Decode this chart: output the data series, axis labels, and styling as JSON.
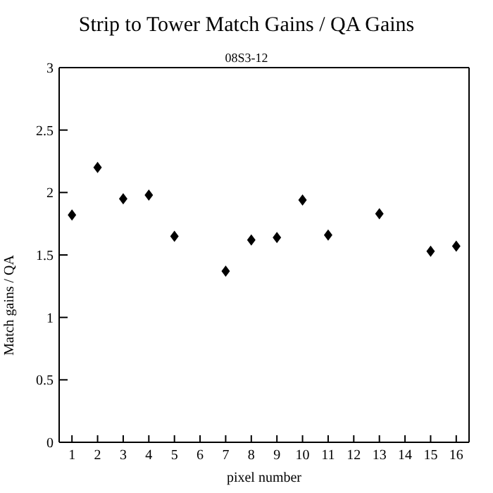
{
  "chart_data": {
    "type": "scatter",
    "title": "Strip to Tower Match Gains / QA Gains",
    "subtitle": "08S3-12",
    "xlabel": "pixel number",
    "ylabel": "Match gains / QA",
    "x": [
      1,
      2,
      3,
      4,
      5,
      7,
      8,
      9,
      10,
      11,
      13,
      15,
      16
    ],
    "values": [
      1.82,
      2.2,
      1.95,
      1.98,
      1.65,
      1.37,
      1.62,
      1.64,
      1.94,
      1.66,
      1.83,
      1.53,
      1.57
    ],
    "errors": [
      null,
      null,
      null,
      0.03,
      null,
      0.03,
      null,
      null,
      0.03,
      null,
      null,
      0.03,
      null
    ],
    "color": "#000000",
    "marker": "diamond",
    "xlim": [
      0.5,
      16.5
    ],
    "xticks": [
      1,
      2,
      3,
      4,
      5,
      6,
      7,
      8,
      9,
      10,
      11,
      12,
      13,
      14,
      15,
      16
    ],
    "ylim": [
      0,
      3
    ],
    "yticks": [
      0,
      0.5,
      1,
      1.5,
      2,
      2.5,
      3
    ]
  }
}
